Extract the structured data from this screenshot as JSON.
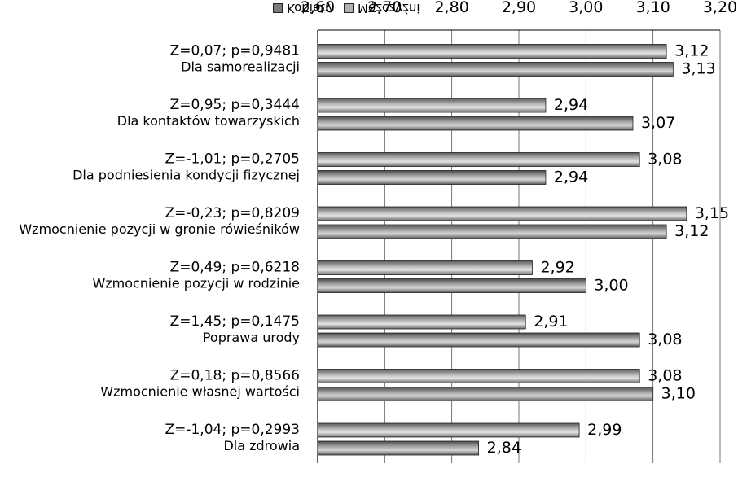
{
  "chart_data": {
    "type": "bar",
    "orientation": "horizontal",
    "categories": [
      "Dla zdrowia",
      "Wzmocnienie własnej wartości",
      "Poprawa urody",
      "Wzmocnienie pozycji w rodzinie",
      "Wzmocnienie pozycji w gronie rówieśników",
      "Dla podniesienia kondycji fizycznej",
      "Dla kontaktów towarzyskich",
      "Dla samorealizacji"
    ],
    "stats": [
      "Z=-1,04; p=0,2993",
      "Z=0,18; p=0,8566",
      "Z=1,45; p=0,1475",
      "Z=0,49; p=0,6218",
      "Z=-0,23; p=0,8209",
      "Z=-1,01; p=0,2705",
      "Z=0,95; p=0,3444",
      "Z=0,07; p=0,9481"
    ],
    "series": [
      {
        "name": "Kobiety",
        "color": "#7a7a7a",
        "values": [
          2.84,
          3.1,
          3.08,
          3.0,
          3.12,
          2.94,
          3.07,
          3.13
        ],
        "labels": [
          "2,84",
          "3,10",
          "3,08",
          "3,00",
          "3,12",
          "2,94",
          "3,07",
          "3,13"
        ]
      },
      {
        "name": "Mężczyźni",
        "color": "#9a9a9a",
        "values": [
          2.99,
          3.08,
          2.91,
          2.92,
          3.15,
          3.08,
          2.94,
          3.12
        ],
        "labels": [
          "2,99",
          "3,08",
          "2,91",
          "2,92",
          "3,15",
          "3,08",
          "2,94",
          "3,12"
        ]
      }
    ],
    "xlim": [
      2.6,
      3.2
    ],
    "xticks": [
      2.6,
      2.7,
      2.8,
      2.9,
      3.0,
      3.1,
      3.2
    ],
    "xtick_labels": [
      "2,60",
      "2,70",
      "2,80",
      "2,90",
      "3,00",
      "3,10",
      "3,20"
    ],
    "grid": true,
    "legend_position": "top"
  }
}
